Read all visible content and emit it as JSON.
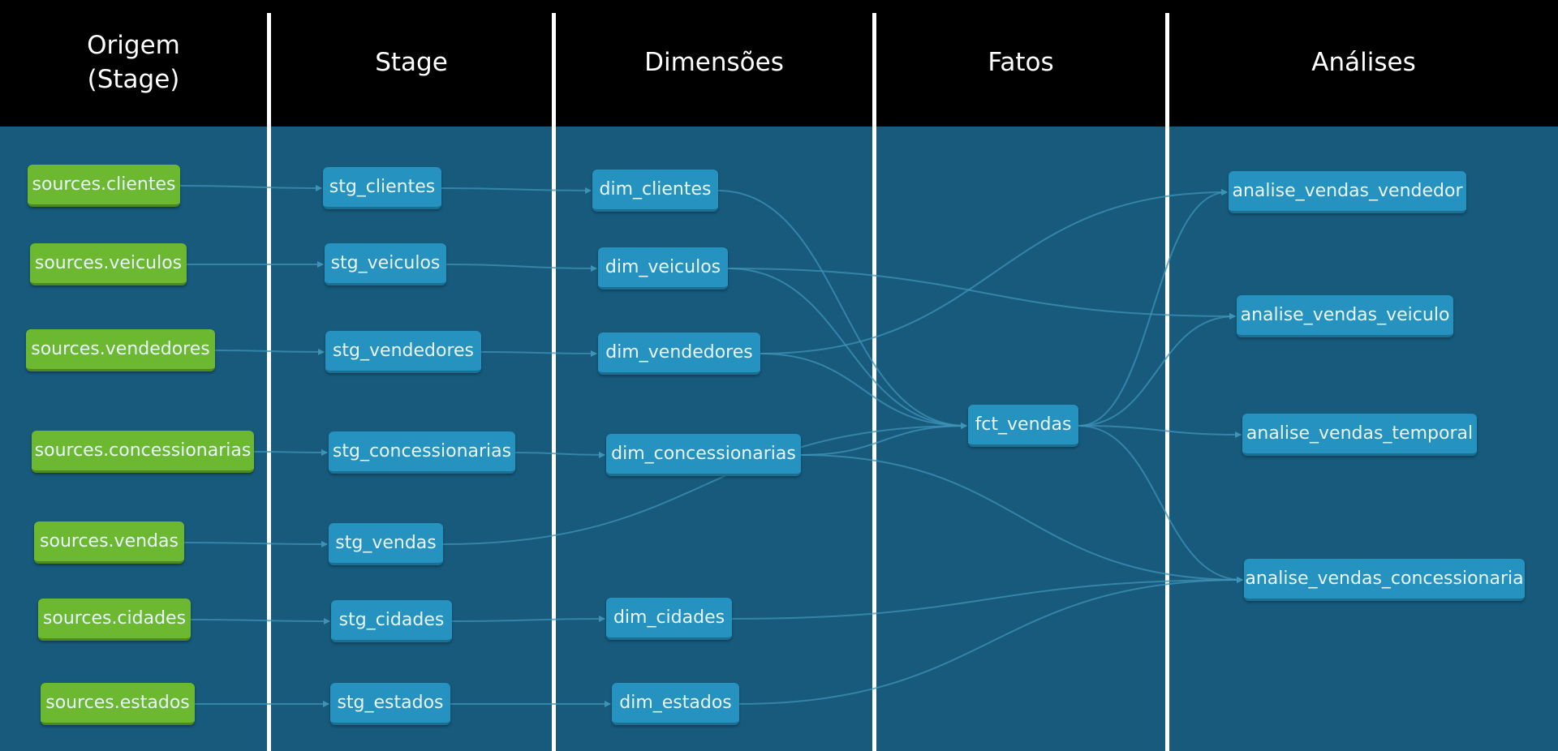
{
  "headers": {
    "origem": "Origem\n(Stage)",
    "stage": "Stage",
    "dimensoes": "Dimensões",
    "fatos": "Fatos",
    "analises": "Análises"
  },
  "nodes": {
    "src_clientes": "sources.clientes",
    "src_veiculos": "sources.veiculos",
    "src_vendedores": "sources.vendedores",
    "src_concessionarias": "sources.concessionarias",
    "src_vendas": "sources.vendas",
    "src_cidades": "sources.cidades",
    "src_estados": "sources.estados",
    "stg_clientes": "stg_clientes",
    "stg_veiculos": "stg_veiculos",
    "stg_vendedores": "stg_vendedores",
    "stg_concessionarias": "stg_concessionarias",
    "stg_vendas": "stg_vendas",
    "stg_cidades": "stg_cidades",
    "stg_estados": "stg_estados",
    "dim_clientes": "dim_clientes",
    "dim_veiculos": "dim_veiculos",
    "dim_vendedores": "dim_vendedores",
    "dim_concessionarias": "dim_concessionarias",
    "dim_cidades": "dim_cidades",
    "dim_estados": "dim_estados",
    "fct_vendas": "fct_vendas",
    "analise_vendas_vendedor": "analise_vendas_vendedor",
    "analise_vendas_veiculo": "analise_vendas_veiculo",
    "analise_vendas_temporal": "analise_vendas_temporal",
    "analise_vendas_concessionaria": "analise_vendas_concessionaria"
  },
  "edges": [
    [
      "src_clientes",
      "stg_clientes"
    ],
    [
      "src_veiculos",
      "stg_veiculos"
    ],
    [
      "src_vendedores",
      "stg_vendedores"
    ],
    [
      "src_concessionarias",
      "stg_concessionarias"
    ],
    [
      "src_vendas",
      "stg_vendas"
    ],
    [
      "src_cidades",
      "stg_cidades"
    ],
    [
      "src_estados",
      "stg_estados"
    ],
    [
      "stg_clientes",
      "dim_clientes"
    ],
    [
      "stg_veiculos",
      "dim_veiculos"
    ],
    [
      "stg_vendedores",
      "dim_vendedores"
    ],
    [
      "stg_concessionarias",
      "dim_concessionarias"
    ],
    [
      "stg_vendas",
      "fct_vendas"
    ],
    [
      "stg_cidades",
      "dim_cidades"
    ],
    [
      "stg_estados",
      "dim_estados"
    ],
    [
      "dim_clientes",
      "fct_vendas"
    ],
    [
      "dim_veiculos",
      "fct_vendas"
    ],
    [
      "dim_vendedores",
      "fct_vendas"
    ],
    [
      "dim_concessionarias",
      "fct_vendas"
    ],
    [
      "dim_vendedores",
      "analise_vendas_vendedor"
    ],
    [
      "dim_veiculos",
      "analise_vendas_veiculo"
    ],
    [
      "dim_concessionarias",
      "analise_vendas_concessionaria"
    ],
    [
      "dim_cidades",
      "analise_vendas_concessionaria"
    ],
    [
      "dim_estados",
      "analise_vendas_concessionaria"
    ],
    [
      "fct_vendas",
      "analise_vendas_vendedor"
    ],
    [
      "fct_vendas",
      "analise_vendas_veiculo"
    ],
    [
      "fct_vendas",
      "analise_vendas_temporal"
    ],
    [
      "fct_vendas",
      "analise_vendas_concessionaria"
    ]
  ],
  "colors": {
    "header_bg": "#000000",
    "lane_bg": "#175a7c",
    "source_node": "#6cb830",
    "model_node": "#2592bf",
    "edge": "#3f93b8",
    "divider": "#ffffff"
  }
}
